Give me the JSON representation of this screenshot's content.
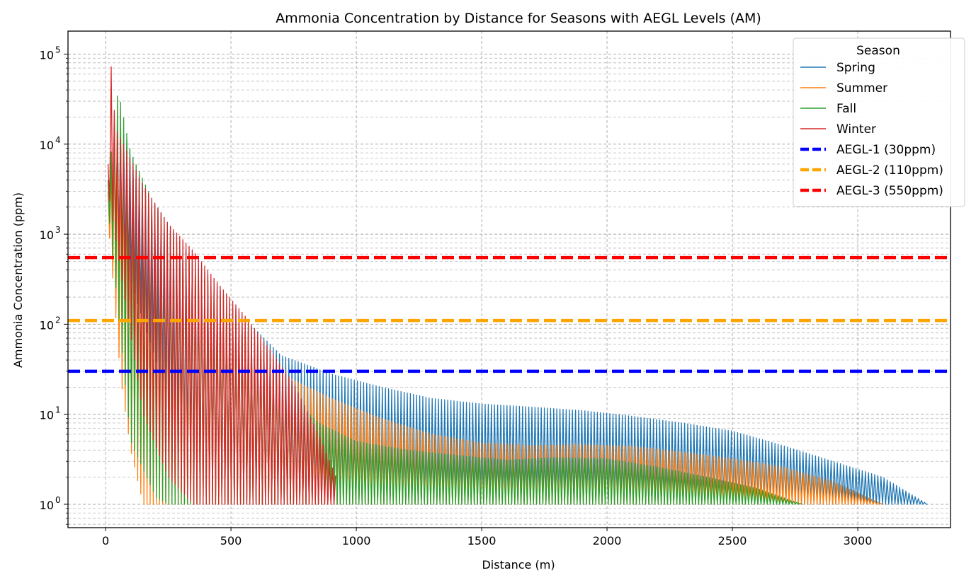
{
  "chart_data": {
    "type": "line",
    "title": "Ammonia Concentration by Distance for Seasons with AEGL Levels (AM)",
    "xlabel": "Distance (m)",
    "ylabel": "Ammonia Concentration (ppm)",
    "xlim": [
      -150,
      3370
    ],
    "ylim": [
      0.55,
      180000
    ],
    "yscale": "log",
    "grid": true,
    "x_ticks": [
      0,
      500,
      1000,
      1500,
      2000,
      2500,
      3000
    ],
    "x_tick_labels": [
      "0",
      "500",
      "1000",
      "1500",
      "2000",
      "2500",
      "3000"
    ],
    "y_ticks": [
      1,
      10,
      100,
      1000,
      10000,
      100000
    ],
    "y_tick_bases": [
      "10",
      "10",
      "10",
      "10",
      "10",
      "10"
    ],
    "y_tick_exponents": [
      "0",
      "1",
      "2",
      "3",
      "4",
      "5"
    ],
    "legend": {
      "title": "Season",
      "position": "top-right"
    },
    "series": [
      {
        "name": "Spring",
        "color": "#1f77b4",
        "style": "oscillating",
        "x_start": 10,
        "x_end": 3280,
        "upper_envelope": [
          [
            10,
            3000
          ],
          [
            50,
            15000
          ],
          [
            80,
            12000
          ],
          [
            150,
            3500
          ],
          [
            300,
            800
          ],
          [
            450,
            250
          ],
          [
            550,
            120
          ],
          [
            700,
            45
          ],
          [
            900,
            28
          ],
          [
            1100,
            20
          ],
          [
            1300,
            15
          ],
          [
            1500,
            13
          ],
          [
            1700,
            12
          ],
          [
            1900,
            11
          ],
          [
            2100,
            9.5
          ],
          [
            2300,
            8
          ],
          [
            2500,
            6.5
          ],
          [
            2700,
            4.5
          ],
          [
            2900,
            3
          ],
          [
            3100,
            2
          ],
          [
            3280,
            1
          ]
        ],
        "lower_envelope": [
          [
            10,
            2000
          ],
          [
            100,
            300
          ],
          [
            200,
            40
          ],
          [
            300,
            5
          ],
          [
            400,
            1.5
          ],
          [
            500,
            1
          ],
          [
            3280,
            1
          ]
        ]
      },
      {
        "name": "Summer",
        "color": "#ff7f0e",
        "style": "oscillating",
        "x_start": 10,
        "x_end": 3100,
        "upper_envelope": [
          [
            10,
            3000
          ],
          [
            40,
            12000
          ],
          [
            80,
            6000
          ],
          [
            150,
            2500
          ],
          [
            300,
            700
          ],
          [
            450,
            220
          ],
          [
            550,
            110
          ],
          [
            700,
            28
          ],
          [
            900,
            15
          ],
          [
            1100,
            9
          ],
          [
            1300,
            6
          ],
          [
            1500,
            4.8
          ],
          [
            1700,
            4.5
          ],
          [
            1900,
            4.6
          ],
          [
            2100,
            4.4
          ],
          [
            2300,
            3.8
          ],
          [
            2500,
            3.2
          ],
          [
            2700,
            2.6
          ],
          [
            2900,
            1.8
          ],
          [
            3100,
            1
          ]
        ],
        "lower_envelope": [
          [
            10,
            1500
          ],
          [
            60,
            25
          ],
          [
            100,
            4
          ],
          [
            150,
            1
          ],
          [
            3100,
            1
          ]
        ]
      },
      {
        "name": "Fall",
        "color": "#2ca02c",
        "style": "oscillating",
        "x_start": 10,
        "x_end": 2780,
        "upper_envelope": [
          [
            10,
            4000
          ],
          [
            50,
            40000
          ],
          [
            100,
            8000
          ],
          [
            200,
            2000
          ],
          [
            300,
            700
          ],
          [
            450,
            200
          ],
          [
            550,
            100
          ],
          [
            650,
            40
          ],
          [
            750,
            15
          ],
          [
            850,
            8
          ],
          [
            1000,
            5
          ],
          [
            1200,
            4
          ],
          [
            1400,
            3.5
          ],
          [
            1600,
            3.1
          ],
          [
            1800,
            3.3
          ],
          [
            2000,
            3.2
          ],
          [
            2200,
            2.6
          ],
          [
            2400,
            2
          ],
          [
            2600,
            1.5
          ],
          [
            2780,
            1
          ]
        ],
        "lower_envelope": [
          [
            10,
            2000
          ],
          [
            100,
            5
          ],
          [
            200,
            1.2
          ],
          [
            250,
            1
          ],
          [
            2780,
            1
          ]
        ]
      },
      {
        "name": "Winter",
        "color": "#d62728",
        "style": "oscillating",
        "x_start": 10,
        "x_end": 920,
        "upper_envelope": [
          [
            10,
            6000
          ],
          [
            20,
            90000
          ],
          [
            40,
            15000
          ],
          [
            80,
            9000
          ],
          [
            150,
            3500
          ],
          [
            250,
            1300
          ],
          [
            350,
            650
          ],
          [
            450,
            280
          ],
          [
            550,
            130
          ],
          [
            650,
            55
          ],
          [
            750,
            22
          ],
          [
            850,
            6
          ],
          [
            920,
            2
          ]
        ],
        "lower_envelope": [
          [
            10,
            3000
          ],
          [
            150,
            10
          ],
          [
            250,
            2
          ],
          [
            350,
            1
          ],
          [
            920,
            1
          ]
        ]
      },
      {
        "name": "AEGL-1 (30ppm)",
        "color": "#0000ff",
        "style": "dashed",
        "value": 30
      },
      {
        "name": "AEGL-2 (110ppm)",
        "color": "#ffa500",
        "style": "dashed",
        "value": 110
      },
      {
        "name": "AEGL-3 (550ppm)",
        "color": "#ff0000",
        "style": "dashed",
        "value": 550
      }
    ]
  }
}
